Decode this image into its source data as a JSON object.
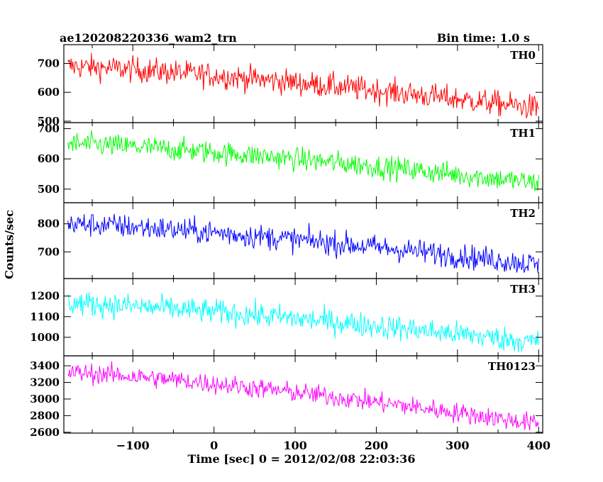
{
  "chart_data": {
    "type": "line",
    "title_left": "ae120208220336_wam2_trn",
    "title_right": "Bin time: 1.0 s",
    "xlabel": "Time [sec] 0 = 2012/02/08 22:03:36",
    "ylabel": "Counts/sec",
    "xlim": [
      -185,
      405
    ],
    "xticks": [
      -100,
      0,
      100,
      200,
      300,
      400
    ],
    "xtick_labels": [
      "−100",
      "0",
      "100",
      "200",
      "300",
      "400"
    ],
    "x_start": -180,
    "x_end": 400,
    "bin_time": 1.0,
    "panels": [
      {
        "name": "TH0",
        "color": "#ff0000",
        "ylim": [
          495,
          765
        ],
        "yticks": [
          500,
          600,
          700
        ],
        "start_level": 690,
        "end_level": 545,
        "noise": 40
      },
      {
        "name": "TH1",
        "color": "#00ff00",
        "ylim": [
          455,
          720
        ],
        "yticks": [
          500,
          600,
          700
        ],
        "start_level": 650,
        "end_level": 520,
        "noise": 35
      },
      {
        "name": "TH2",
        "color": "#0000ff",
        "ylim": [
          605,
          875
        ],
        "yticks": [
          700,
          800
        ],
        "start_level": 800,
        "end_level": 655,
        "noise": 40
      },
      {
        "name": "TH3",
        "color": "#00ffff",
        "ylim": [
          910,
          1285
        ],
        "yticks": [
          1000,
          1100,
          1200
        ],
        "start_level": 1165,
        "end_level": 975,
        "noise": 55
      },
      {
        "name": "TH0123",
        "color": "#ff00ff",
        "ylim": [
          2590,
          3520
        ],
        "yticks": [
          2600,
          2800,
          3000,
          3200,
          3400
        ],
        "start_level": 3320,
        "end_level": 2700,
        "noise": 110
      }
    ]
  }
}
